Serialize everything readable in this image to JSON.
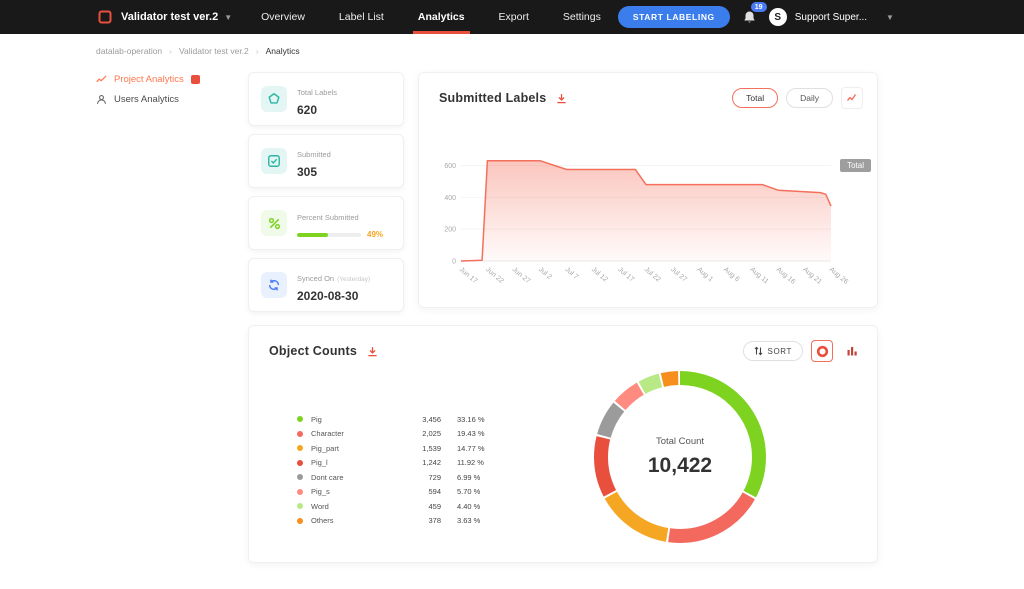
{
  "header": {
    "project_title": "Validator test ver.2",
    "nav_items": [
      {
        "label": "Overview",
        "active": false
      },
      {
        "label": "Label List",
        "active": false
      },
      {
        "label": "Analytics",
        "active": true
      },
      {
        "label": "Export",
        "active": false
      },
      {
        "label": "Settings",
        "active": false
      }
    ],
    "start_labeling_label": "START LABELING",
    "notification_count": "19",
    "avatar_letter": "S",
    "user_name": "Support Super..."
  },
  "breadcrumb": {
    "items": [
      {
        "label": "datalab-operation",
        "current": false
      },
      {
        "label": "Validator test ver.2",
        "current": false
      },
      {
        "label": "Analytics",
        "current": true
      }
    ]
  },
  "sidebar": {
    "items": [
      {
        "label": "Project Analytics",
        "icon": "analytics-line-icon",
        "active": true
      },
      {
        "label": "Users Analytics",
        "icon": "user-icon",
        "active": false
      }
    ]
  },
  "stat_cards": [
    {
      "icon": "pentagon-icon",
      "icon_bg": "#e4f6f3",
      "label": "Total Labels",
      "value": "620",
      "type": "plain"
    },
    {
      "icon": "submitted-check-icon",
      "icon_bg": "#e4f6f3",
      "label": "Submitted",
      "value": "305",
      "type": "plain"
    },
    {
      "icon": "percent-icon",
      "icon_bg": "#f0fae8",
      "label": "Percent Submitted",
      "value": "49%",
      "type": "progress",
      "progress": 49
    },
    {
      "icon": "sync-icon",
      "icon_bg": "#e9f0fe",
      "label": "Synced On",
      "sublabel": "(Yesterday)",
      "value": "2020-08-30",
      "type": "plain"
    }
  ],
  "submitted_labels_card": {
    "title": "Submitted Labels",
    "toggle_buttons": [
      {
        "label": "Total",
        "active": true
      },
      {
        "label": "Daily",
        "active": false
      }
    ],
    "series_badge": "Total"
  },
  "object_counts_card": {
    "title": "Object Counts",
    "sort_button_label": "SORT",
    "center_label": "Total Count",
    "center_value": "10,422"
  },
  "chart_data": [
    {
      "type": "area",
      "title": "Submitted Labels",
      "series_name": "Total",
      "x_tick_labels": [
        "Jun 17",
        "Jun 22",
        "Jun 27",
        "Jul 2",
        "Jul 7",
        "Jul 12",
        "Jul 17",
        "Jul 22",
        "Jul 27",
        "Aug 1",
        "Aug 6",
        "Aug 11",
        "Aug 16",
        "Aug 21",
        "Aug 26"
      ],
      "x_tick_days": [
        0,
        5,
        10,
        15,
        20,
        25,
        30,
        35,
        40,
        45,
        50,
        55,
        60,
        65,
        70
      ],
      "points": [
        [
          0,
          0
        ],
        [
          4,
          5
        ],
        [
          5,
          630
        ],
        [
          15,
          630
        ],
        [
          20,
          575
        ],
        [
          33,
          575
        ],
        [
          35,
          480
        ],
        [
          57,
          480
        ],
        [
          60,
          445
        ],
        [
          68,
          430
        ],
        [
          69,
          420
        ],
        [
          70,
          345
        ]
      ],
      "y_ticks": [
        0,
        200,
        400,
        600
      ],
      "y_max": 660,
      "line_color": "#f4705c",
      "fill_color": "#f4705c"
    },
    {
      "type": "donut",
      "title": "Object Counts",
      "total": 10422,
      "total_display": "10,422",
      "rows": [
        {
          "name": "Pig",
          "count": "3,456",
          "value": 3456,
          "percent": "33.16 %",
          "color": "#7ed321"
        },
        {
          "name": "Character",
          "count": "2,025",
          "value": 2025,
          "percent": "19.43 %",
          "color": "#f4695e"
        },
        {
          "name": "Pig_part",
          "count": "1,539",
          "value": 1539,
          "percent": "14.77 %",
          "color": "#f5a623"
        },
        {
          "name": "Pig_l",
          "count": "1,242",
          "value": 1242,
          "percent": "11.92 %",
          "color": "#e94f3d"
        },
        {
          "name": "Dont care",
          "count": "729",
          "value": 729,
          "percent": "6.99 %",
          "color": "#9b9b9b"
        },
        {
          "name": "Pig_s",
          "count": "594",
          "value": 594,
          "percent": "5.70 %",
          "color": "#ff8a80"
        },
        {
          "name": "Word",
          "count": "459",
          "value": 459,
          "percent": "4.40 %",
          "color": "#b8e986"
        },
        {
          "name": "Others",
          "count": "378",
          "value": 378,
          "percent": "3.63 %",
          "color": "#f78f1e"
        }
      ]
    }
  ],
  "colors": {
    "accent_red": "#e94f3d",
    "sidebar_active": "#ff7750",
    "primary_blue": "#3b7ded",
    "teal": "#2bb5a3",
    "progress_green": "#7ed321",
    "series_badge_gray": "#9e9e9e"
  }
}
